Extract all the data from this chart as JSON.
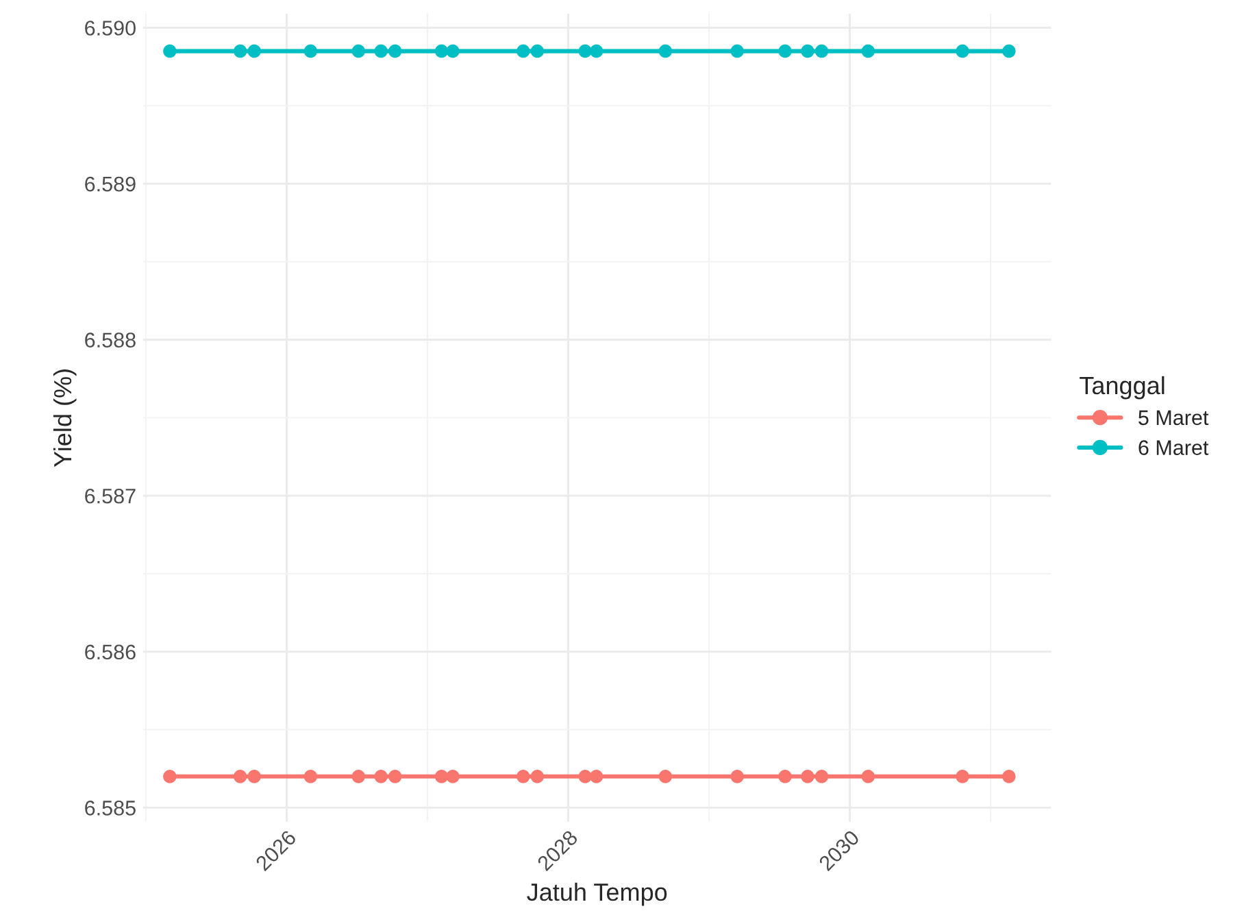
{
  "chart_data": {
    "type": "line",
    "xlabel": "Jatuh Tempo",
    "ylabel": "Yield (%)",
    "legend_title": "Tanggal",
    "legend": "right",
    "marker": "circle",
    "line_style": "solid",
    "grid": true,
    "x": [
      2025.17,
      2025.67,
      2025.77,
      2026.17,
      2026.51,
      2026.67,
      2026.77,
      2027.1,
      2027.18,
      2027.68,
      2027.78,
      2028.12,
      2028.2,
      2028.69,
      2029.2,
      2029.54,
      2029.7,
      2029.8,
      2030.13,
      2030.8,
      2031.13
    ],
    "series": [
      {
        "name": "5 Maret",
        "color": "#f8766d",
        "values": [
          6.5852,
          6.5852,
          6.5852,
          6.5852,
          6.5852,
          6.5852,
          6.5852,
          6.5852,
          6.5852,
          6.5852,
          6.5852,
          6.5852,
          6.5852,
          6.5852,
          6.5852,
          6.5852,
          6.5852,
          6.5852,
          6.5852,
          6.5852,
          6.5852
        ]
      },
      {
        "name": "6 Maret",
        "color": "#00bfc4",
        "values": [
          6.58985,
          6.58985,
          6.58985,
          6.58985,
          6.58985,
          6.58985,
          6.58985,
          6.58985,
          6.58985,
          6.58985,
          6.58985,
          6.58985,
          6.58985,
          6.58985,
          6.58985,
          6.58985,
          6.58985,
          6.58985,
          6.58985,
          6.58985,
          6.58985
        ]
      }
    ],
    "xlim": [
      2024.98,
      2031.43
    ],
    "xticks": [
      2026,
      2028,
      2030
    ],
    "ylim": [
      6.58491,
      6.59009
    ],
    "yticks": [
      {
        "value": 6.585,
        "label": "6.585"
      },
      {
        "value": 6.586,
        "label": "6.586"
      },
      {
        "value": 6.587,
        "label": "6.587"
      },
      {
        "value": 6.588,
        "label": "6.588"
      },
      {
        "value": 6.589,
        "label": "6.589"
      },
      {
        "value": 6.59,
        "label": "6.590"
      }
    ]
  }
}
